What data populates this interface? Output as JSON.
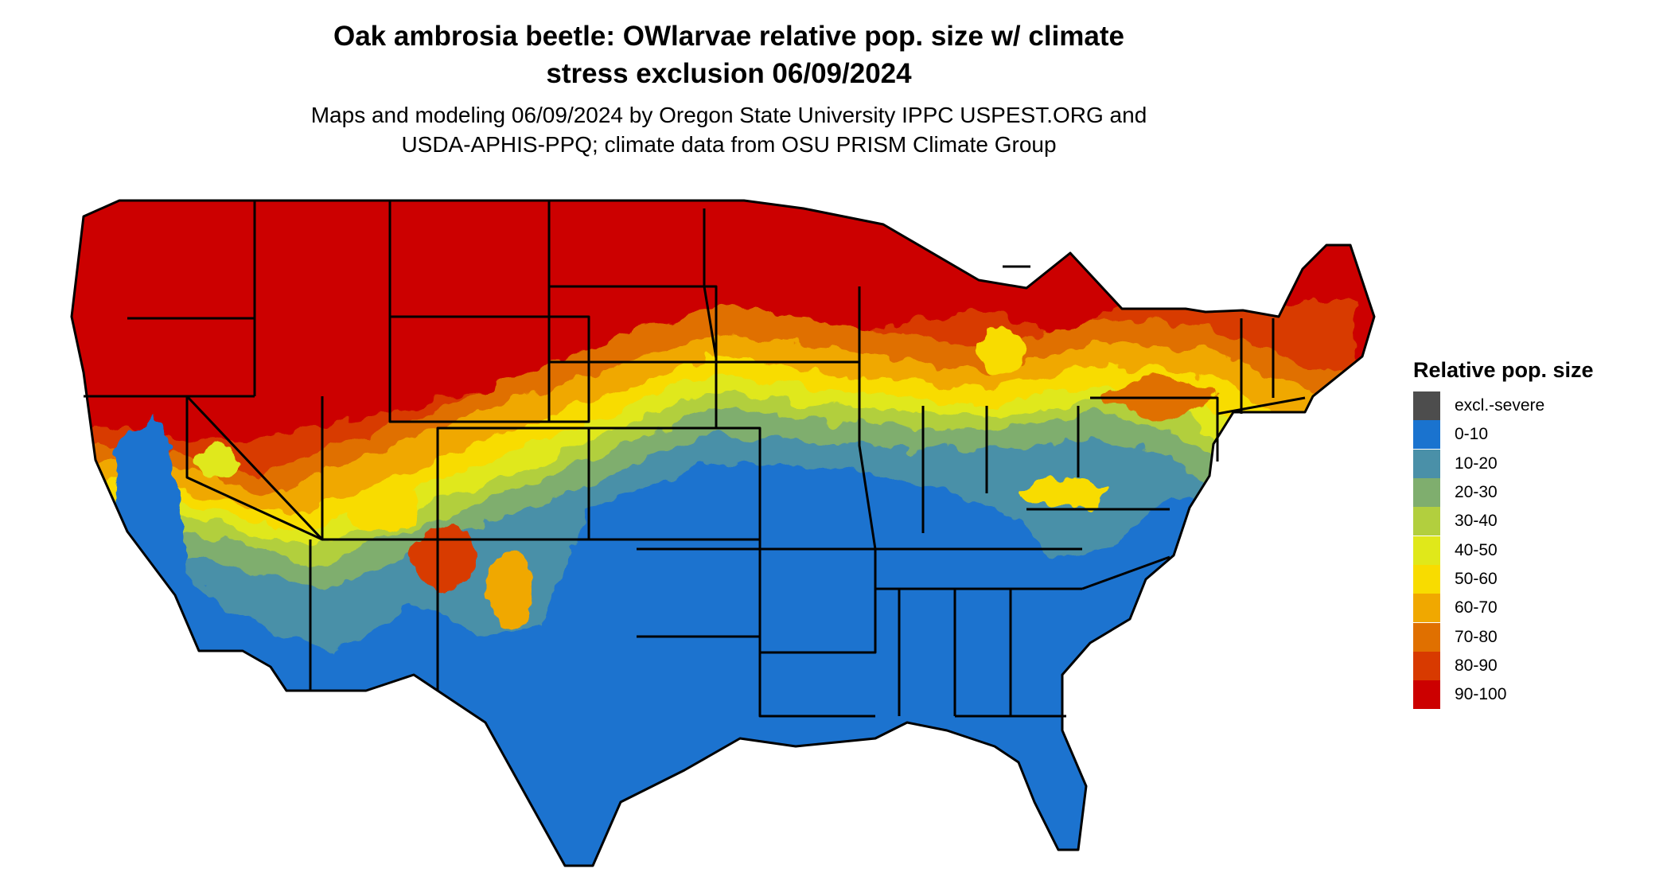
{
  "title": {
    "line1": "Oak ambrosia beetle: OWlarvae relative pop. size w/ climate",
    "line2": "stress exclusion 06/09/2024"
  },
  "subtitle": {
    "line1": "Maps and modeling 06/09/2024 by Oregon State University IPPC USPEST.ORG and",
    "line2": "USDA-APHIS-PPQ; climate data from OSU PRISM Climate Group"
  },
  "legend": {
    "title": "Relative pop. size",
    "items": [
      {
        "label": "excl.-severe",
        "color": "#4d4d4d"
      },
      {
        "label": "0-10",
        "color": "#1a73cf"
      },
      {
        "label": "10-20",
        "color": "#4a90a8"
      },
      {
        "label": "20-30",
        "color": "#7fae6e"
      },
      {
        "label": "30-40",
        "color": "#b2cf3e"
      },
      {
        "label": "40-50",
        "color": "#e0e81a"
      },
      {
        "label": "50-60",
        "color": "#f8dc00"
      },
      {
        "label": "60-70",
        "color": "#f0a800"
      },
      {
        "label": "70-80",
        "color": "#e07000"
      },
      {
        "label": "80-90",
        "color": "#d83a00"
      },
      {
        "label": "90-100",
        "color": "#cc0000"
      }
    ]
  },
  "map": {
    "region": "Contiguous United States",
    "border_color": "#000000"
  }
}
